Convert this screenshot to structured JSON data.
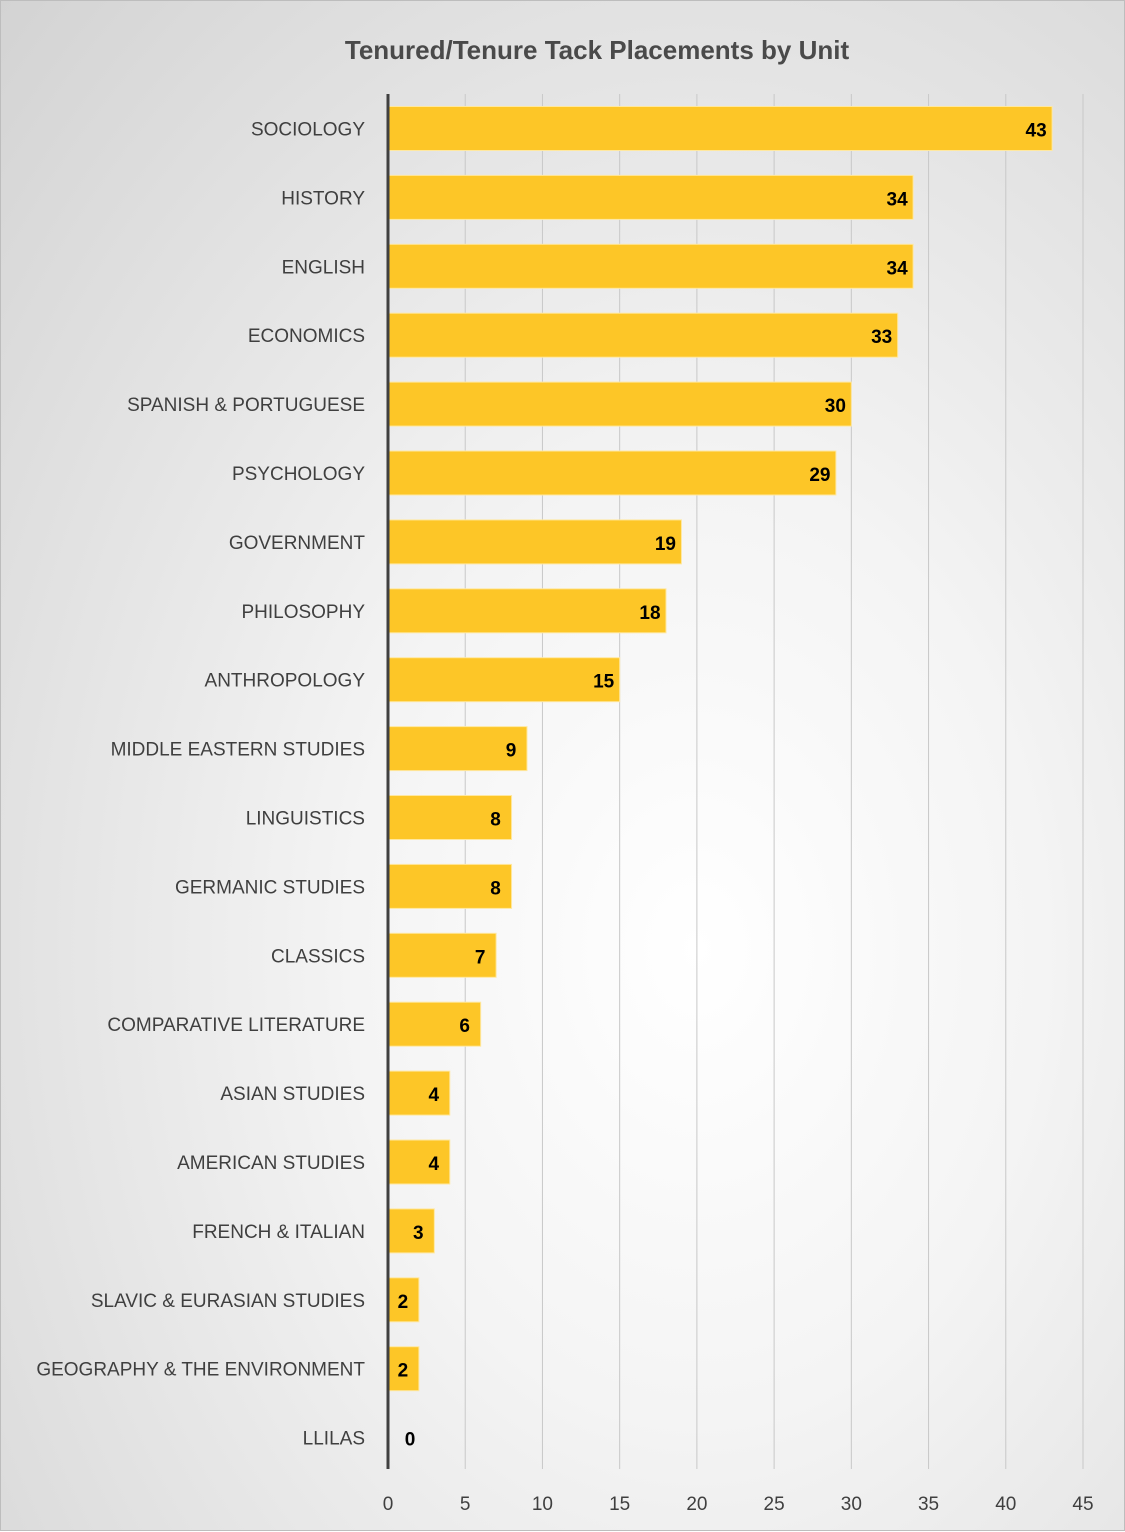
{
  "chart_data": {
    "type": "bar",
    "orientation": "horizontal",
    "title": "Tenured/Tenure Tack Placements by Unit",
    "xlabel": "",
    "ylabel": "",
    "categories": [
      "SOCIOLOGY",
      "HISTORY",
      "ENGLISH",
      "ECONOMICS",
      "SPANISH & PORTUGUESE",
      "PSYCHOLOGY",
      "GOVERNMENT",
      "PHILOSOPHY",
      "ANTHROPOLOGY",
      "MIDDLE EASTERN STUDIES",
      "LINGUISTICS",
      "GERMANIC STUDIES",
      "CLASSICS",
      "COMPARATIVE LITERATURE",
      "ASIAN STUDIES",
      "AMERICAN STUDIES",
      "FRENCH & ITALIAN",
      "SLAVIC & EURASIAN STUDIES",
      "GEOGRAPHY & THE ENVIRONMENT",
      "LLILAS"
    ],
    "values": [
      43,
      34,
      34,
      33,
      30,
      29,
      19,
      18,
      15,
      9,
      8,
      8,
      7,
      6,
      4,
      4,
      3,
      2,
      2,
      0
    ],
    "xlim": [
      0,
      45
    ],
    "xticks": [
      "0",
      "5",
      "10",
      "15",
      "20",
      "25",
      "30",
      "35",
      "40",
      "45"
    ],
    "grid": "vertical",
    "legend": "none",
    "bar_color": "#FDC627",
    "bar_edge_color": "#FFE8A0",
    "data_labels": "inside-end"
  }
}
